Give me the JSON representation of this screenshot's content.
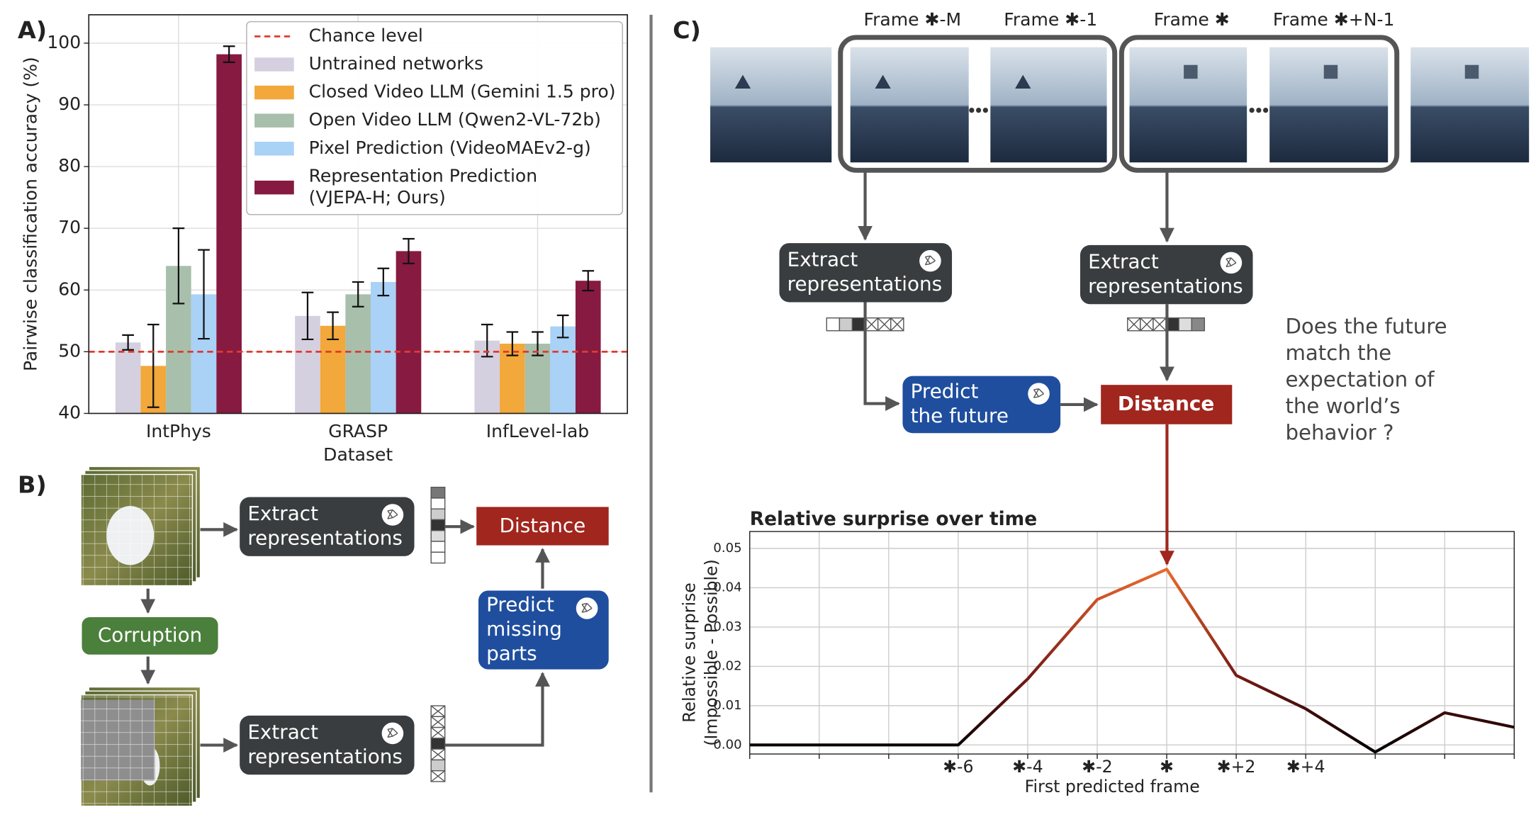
{
  "panel_labels": [
    "A)",
    "B)",
    "C)"
  ],
  "chart_data": [
    {
      "type": "bar",
      "ylabel": "Pairwise classification accuracy (%)",
      "xlabel": "Dataset",
      "categories": [
        "IntPhys",
        "GRASP",
        "InfLevel-lab"
      ],
      "ylim": [
        40,
        104.6
      ],
      "yticks": [
        40,
        50,
        60,
        70,
        80,
        90,
        100
      ],
      "grid": true,
      "legend": "upper right",
      "reference_line": {
        "name": "Chance level",
        "value": 50,
        "color": "#e03a2f"
      },
      "series": [
        {
          "name": "Untrained networks",
          "color": "#d5d0e0",
          "values": [
            51.5,
            55.8,
            51.8
          ],
          "errors": [
            1.2,
            3.8,
            2.6
          ]
        },
        {
          "name": "Closed Video LLM (Gemini 1.5 pro)",
          "color": "#f2a83a",
          "values": [
            47.7,
            54.2,
            51.3
          ],
          "errors": [
            6.7,
            2.2,
            1.9
          ]
        },
        {
          "name": "Open Video LLM (Qwen2-VL-72b)",
          "color": "#a7bfab",
          "values": [
            63.9,
            59.3,
            51.3
          ],
          "errors": [
            6.1,
            2.0,
            1.9
          ]
        },
        {
          "name": "Pixel Prediction (VideoMAEv2-g)",
          "color": "#aad1f6",
          "values": [
            59.3,
            61.3,
            54.1
          ],
          "errors": [
            7.2,
            2.2,
            1.8
          ]
        },
        {
          "name": "Representation Prediction (VJEPA-H; Ours)",
          "color": "#871a40",
          "values": [
            98.2,
            66.3,
            61.5
          ],
          "errors": [
            1.3,
            2.0,
            1.6
          ]
        }
      ]
    },
    {
      "type": "line",
      "title": "Relative surprise over time",
      "ylabel": [
        "Relative surprise",
        "(Impossible - Possible)"
      ],
      "xlabel": "First predicted frame",
      "x": [
        -12,
        -10,
        -8,
        -6,
        -4,
        -2,
        0,
        2,
        4,
        6,
        8,
        10
      ],
      "values": [
        0,
        0,
        0,
        0,
        0.0168,
        0.037,
        0.0447,
        0.0177,
        0.0092,
        -0.0018,
        0.0082,
        0.0045
      ],
      "xlim": [
        -12,
        10
      ],
      "ylim": [
        -0.0023,
        0.0543
      ],
      "yticks": [
        {
          "value": 0,
          "label": "0.00"
        },
        {
          "value": 0.01,
          "label": "0.01"
        },
        {
          "value": 0.02,
          "label": "0.02"
        },
        {
          "value": 0.03,
          "label": "0.03"
        },
        {
          "value": 0.04,
          "label": "0.04"
        },
        {
          "value": 0.05,
          "label": "0.05"
        }
      ],
      "xticks": [
        {
          "value": -12,
          "label": null
        },
        {
          "value": -10,
          "label": null
        },
        {
          "value": -8,
          "label": null
        },
        {
          "value": -6,
          "label": "✱-6"
        },
        {
          "value": -4,
          "label": "✱-4"
        },
        {
          "value": -2,
          "label": "✱-2"
        },
        {
          "value": 0,
          "label": "✱"
        },
        {
          "value": 2,
          "label": "✱+2"
        },
        {
          "value": 4,
          "label": "✱+4"
        },
        {
          "value": 6,
          "label": null
        },
        {
          "value": 8,
          "label": null
        },
        {
          "value": 10,
          "label": null
        }
      ],
      "grid": true,
      "colormap": [
        "#000000",
        "#8e1f1a",
        "#ea6a2c"
      ]
    }
  ],
  "diagram_b": {
    "extract_top": [
      "Extract",
      "representations"
    ],
    "extract_bottom": [
      "Extract",
      "representations"
    ],
    "corruption": "Corruption",
    "distance": "Distance",
    "predict": [
      "Predict",
      "missing",
      "parts"
    ]
  },
  "diagram_c": {
    "frames": [
      "Frame ✱-M",
      "Frame ✱-1",
      "Frame ✱",
      "Frame ✱+N-1"
    ],
    "extract_left": [
      "Extract",
      "representations"
    ],
    "extract_right": [
      "Extract",
      "representations"
    ],
    "predict": [
      "Predict",
      "the future"
    ],
    "distance": "Distance",
    "question": [
      "Does the future",
      "match the",
      "expectation of",
      "the world’s",
      "behavior ?"
    ]
  }
}
